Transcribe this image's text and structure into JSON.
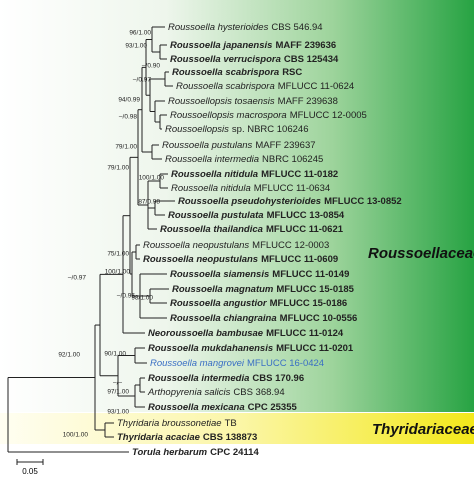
{
  "taxa": [
    {
      "name": "Roussoella hysterioides",
      "strain": "CBS 546.94",
      "bold": false
    },
    {
      "name": "Roussoella japanensis",
      "strain": "MAFF 239636",
      "bold": true
    },
    {
      "name": "Roussoella verrucispora",
      "strain": "CBS 125434",
      "bold": true
    },
    {
      "name": "Roussoella scabrispora",
      "strain": "RSC",
      "bold": true
    },
    {
      "name": "Roussoella scabrispora",
      "strain": "MFLUCC 11-0624",
      "bold": false
    },
    {
      "name": "Roussoellopsis tosaensis",
      "strain": "MAFF 239638",
      "bold": false
    },
    {
      "name": "Roussoellopsis macrospora",
      "strain": "MFLUCC 12-0005",
      "bold": false
    },
    {
      "name": "Roussoellopsis",
      "strain": "sp. NBRC 106246",
      "bold": false
    },
    {
      "name": "Roussoella pustulans",
      "strain": "MAFF 239637",
      "bold": false
    },
    {
      "name": "Roussoella intermedia",
      "strain": "NBRC 106245",
      "bold": false
    },
    {
      "name": "Roussoella nitidula",
      "strain": "MFLUCC 11-0182",
      "bold": true
    },
    {
      "name": "Roussoella nitidula",
      "strain": "MFLUCC 11-0634",
      "bold": false
    },
    {
      "name": "Roussoella pseudohysterioides",
      "strain": "MFLUCC 13-0852",
      "bold": true
    },
    {
      "name": "Roussoella pustulata",
      "strain": "MFLUCC 13-0854",
      "bold": true
    },
    {
      "name": "Roussoella thailandica",
      "strain": "MFLUCC 11-0621",
      "bold": true
    },
    {
      "name": "Roussoella neopustulans",
      "strain": "MFLUCC 12-0003",
      "bold": false
    },
    {
      "name": "Roussoella neopustulans",
      "strain": "MFLUCC 11-0609",
      "bold": true
    },
    {
      "name": "Roussoella siamensis",
      "strain": "MFLUCC 11-0149",
      "bold": true
    },
    {
      "name": "Roussoella magnatum",
      "strain": "MFLUCC 15-0185",
      "bold": true
    },
    {
      "name": "Roussoella angustior",
      "strain": "MFLUCC 15-0186",
      "bold": true
    },
    {
      "name": "Roussoella chiangraina",
      "strain": "MFLUCC 10-0556",
      "bold": true
    },
    {
      "name": "Neoroussoella bambusae",
      "strain": "MFLUCC 11-0124",
      "bold": true
    },
    {
      "name": "Roussoella mukdahanensis",
      "strain": "MFLUCC 11-0201",
      "bold": true
    },
    {
      "name": "Roussoella mangrovei",
      "strain": "MFLUCC 16-0424",
      "bold": false,
      "color": "#3a6fc4"
    },
    {
      "name": "Roussoella intermedia",
      "strain": "CBS 170.96",
      "bold": true
    },
    {
      "name": "Arthopyrenia salicis",
      "strain": "CBS 368.94",
      "bold": false
    },
    {
      "name": "Roussoella mexicana",
      "strain": "CPC 25355",
      "bold": true
    },
    {
      "name": "Thyridaria broussonetiae",
      "strain": "TB",
      "bold": false
    },
    {
      "name": "Thyridaria acaciae",
      "strain": "CBS 138873",
      "bold": true
    },
    {
      "name": "Torula herbarum",
      "strain": "CPC 24114",
      "bold": true
    }
  ],
  "support": [
    "96/1.00",
    "93/1.00",
    "–/0.90",
    "–/0.97",
    "94/0.99",
    "–/0.98",
    "79/1.00",
    "100/1.00",
    "87/0.98",
    "79/1.00",
    "75/1.00",
    "100/1.00",
    "–/0.96",
    "–/0.97",
    "98/1.00",
    "92/1.00",
    "90/1.00",
    "–/–",
    "97/1.00",
    "93/1.00",
    "100/1.00"
  ],
  "families": [
    "Roussoellaceae",
    "Thyridariaceae"
  ],
  "scale_bar": "0.05"
}
